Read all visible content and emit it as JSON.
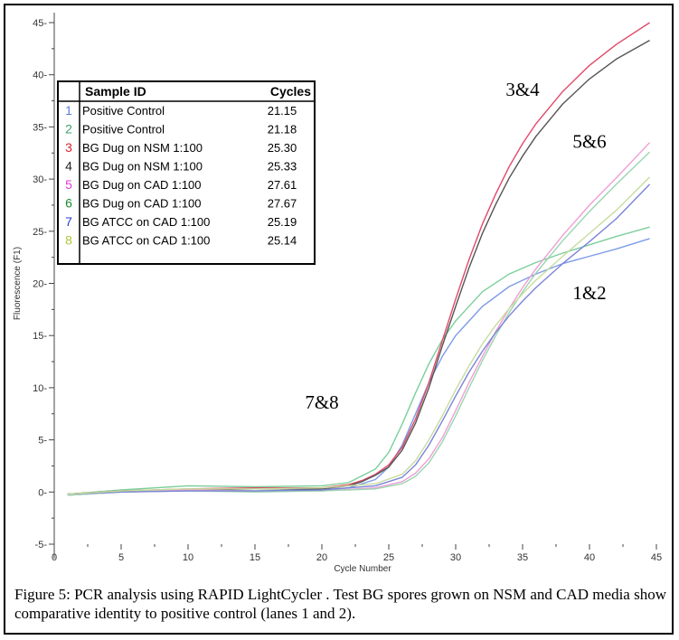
{
  "chart_data": {
    "type": "line",
    "xlabel": "Cycle Number",
    "ylabel": "Fluorescence (F1)",
    "xlim": [
      0,
      45
    ],
    "ylim": [
      -5,
      45
    ],
    "x_ticks": [
      "0",
      "5",
      "10",
      "15",
      "20",
      "25",
      "30",
      "35",
      "40",
      "45"
    ],
    "y_ticks": [
      "-5-",
      "0-",
      "5-",
      "10-",
      "15-",
      "20-",
      "25-",
      "30-",
      "35-",
      "40-",
      "45-"
    ],
    "grid": false,
    "legend": {
      "placement": "top-left",
      "header_id": "Sample ID",
      "header_cycles": "Cycles",
      "rows": [
        {
          "num": "1",
          "name": "Positive Control",
          "cycles": "21.15",
          "color": "#5b7fd6"
        },
        {
          "num": "2",
          "name": "Positive Control",
          "cycles": "21.18",
          "color": "#3fa06b"
        },
        {
          "num": "3",
          "name": "BG Dug on NSM 1:100",
          "cycles": "25.30",
          "color": "#d8232d"
        },
        {
          "num": "4",
          "name": "BG Dug on NSM 1:100",
          "cycles": "25.33",
          "color": "#222222"
        },
        {
          "num": "5",
          "name": "BG Dug on CAD 1:100",
          "cycles": "27.61",
          "color": "#e23ad9"
        },
        {
          "num": "6",
          "name": "BG Dug on CAD 1:100",
          "cycles": "27.67",
          "color": "#1c8a2c"
        },
        {
          "num": "7",
          "name": "BG ATCC on CAD 1:100",
          "cycles": "25.19",
          "color": "#2a3bd1"
        },
        {
          "num": "8",
          "name": "BG ATCC on CAD 1:100",
          "cycles": "25.14",
          "color": "#b4c43a"
        }
      ]
    },
    "annotations": [
      {
        "text": "3&4",
        "x": 35,
        "y": 38
      },
      {
        "text": "5&6",
        "x": 40,
        "y": 33
      },
      {
        "text": "1&2",
        "x": 40,
        "y": 18.5
      },
      {
        "text": "7&8",
        "x": 20,
        "y": 8
      }
    ],
    "series": [
      {
        "name": "1",
        "color": "#7d9be8",
        "x": [
          1,
          5,
          10,
          15,
          20,
          22,
          24,
          25,
          26,
          27,
          28,
          29,
          30,
          32,
          34,
          36,
          38,
          40,
          42,
          44.5
        ],
        "y": [
          -0.3,
          0,
          0.2,
          0.1,
          0.2,
          0.4,
          1.2,
          2.4,
          4.5,
          7.5,
          10.5,
          13,
          15,
          17.8,
          19.7,
          20.9,
          21.9,
          22.6,
          23.3,
          24.3
        ]
      },
      {
        "name": "2",
        "color": "#7bcf9a",
        "x": [
          1,
          5,
          10,
          15,
          20,
          22,
          24,
          25,
          26,
          27,
          28,
          29,
          30,
          32,
          34,
          36,
          38,
          40,
          42,
          44.5
        ],
        "y": [
          -0.2,
          0.2,
          0.6,
          0.5,
          0.6,
          0.9,
          2.2,
          3.8,
          6.5,
          9.5,
          12.3,
          14.6,
          16.4,
          19.2,
          20.9,
          22,
          22.9,
          23.7,
          24.5,
          25.4
        ]
      },
      {
        "name": "3",
        "color": "#e04a68",
        "x": [
          1,
          5,
          10,
          15,
          20,
          22,
          23,
          24,
          25,
          26,
          27,
          28,
          29,
          30,
          31,
          32,
          33,
          34,
          35,
          36,
          38,
          40,
          42,
          44.5
        ],
        "y": [
          -0.2,
          0.1,
          0.3,
          0.4,
          0.4,
          0.7,
          1.1,
          1.7,
          2.6,
          4.3,
          7,
          10.5,
          14.5,
          18.5,
          22.3,
          25.7,
          28.6,
          31.2,
          33.4,
          35.3,
          38.4,
          40.9,
          42.9,
          45
        ]
      },
      {
        "name": "4",
        "color": "#555555",
        "x": [
          1,
          5,
          10,
          15,
          20,
          22,
          23,
          24,
          25,
          26,
          27,
          28,
          29,
          30,
          31,
          32,
          33,
          34,
          35,
          36,
          38,
          40,
          42,
          44.5
        ],
        "y": [
          -0.2,
          0.1,
          0.2,
          0.3,
          0.3,
          0.6,
          1,
          1.6,
          2.4,
          4,
          6.6,
          10,
          14,
          17.8,
          21.5,
          24.8,
          27.6,
          30.1,
          32.2,
          34.1,
          37.2,
          39.6,
          41.5,
          43.3
        ]
      },
      {
        "name": "5",
        "color": "#ee9fd6",
        "x": [
          1,
          5,
          10,
          15,
          20,
          24,
          26,
          27,
          28,
          29,
          30,
          31,
          32,
          33,
          34,
          35,
          36,
          38,
          40,
          42,
          44.5
        ],
        "y": [
          -0.3,
          0,
          0.2,
          0.1,
          0.1,
          0.4,
          1,
          1.8,
          3.2,
          5.2,
          7.8,
          10.5,
          13,
          15.4,
          17.6,
          19.6,
          21.4,
          24.6,
          27.5,
          30.1,
          33.5
        ]
      },
      {
        "name": "6",
        "color": "#9ad6b0",
        "x": [
          1,
          5,
          10,
          15,
          20,
          24,
          26,
          27,
          28,
          29,
          30,
          31,
          32,
          33,
          34,
          35,
          36,
          38,
          40,
          42,
          44.5
        ],
        "y": [
          -0.3,
          0,
          0.1,
          0,
          0.1,
          0.3,
          0.8,
          1.5,
          2.8,
          4.8,
          7.3,
          10,
          12.6,
          15,
          17.2,
          19.2,
          21,
          24.1,
          26.9,
          29.5,
          32.6
        ]
      },
      {
        "name": "7",
        "color": "#7b84d6",
        "x": [
          1,
          5,
          10,
          15,
          20,
          24,
          26,
          27,
          28,
          29,
          30,
          31,
          32,
          33,
          34,
          35,
          36,
          38,
          40,
          42,
          44.5
        ],
        "y": [
          -0.2,
          0,
          0.1,
          0.1,
          0.2,
          0.6,
          1.4,
          2.6,
          4.5,
          6.8,
          9.2,
          11.5,
          13.5,
          15.3,
          16.9,
          18.3,
          19.6,
          21.9,
          24,
          26.2,
          29.5
        ]
      },
      {
        "name": "8",
        "color": "#c7dca0",
        "x": [
          1,
          5,
          10,
          15,
          20,
          24,
          26,
          27,
          28,
          29,
          30,
          31,
          32,
          33,
          34,
          35,
          36,
          38,
          40,
          42,
          44.5
        ],
        "y": [
          -0.2,
          0.1,
          0.3,
          0.3,
          0.4,
          0.8,
          1.7,
          3,
          5,
          7.3,
          9.8,
          12.1,
          14.2,
          16,
          17.6,
          19,
          20.3,
          22.6,
          24.8,
          27,
          30.2
        ]
      }
    ]
  },
  "caption": "Figure 5:  PCR analysis using RAPID LightCycler .  Test BG spores grown on NSM and CAD media show comparative identity to positive control (lanes 1 and 2)."
}
